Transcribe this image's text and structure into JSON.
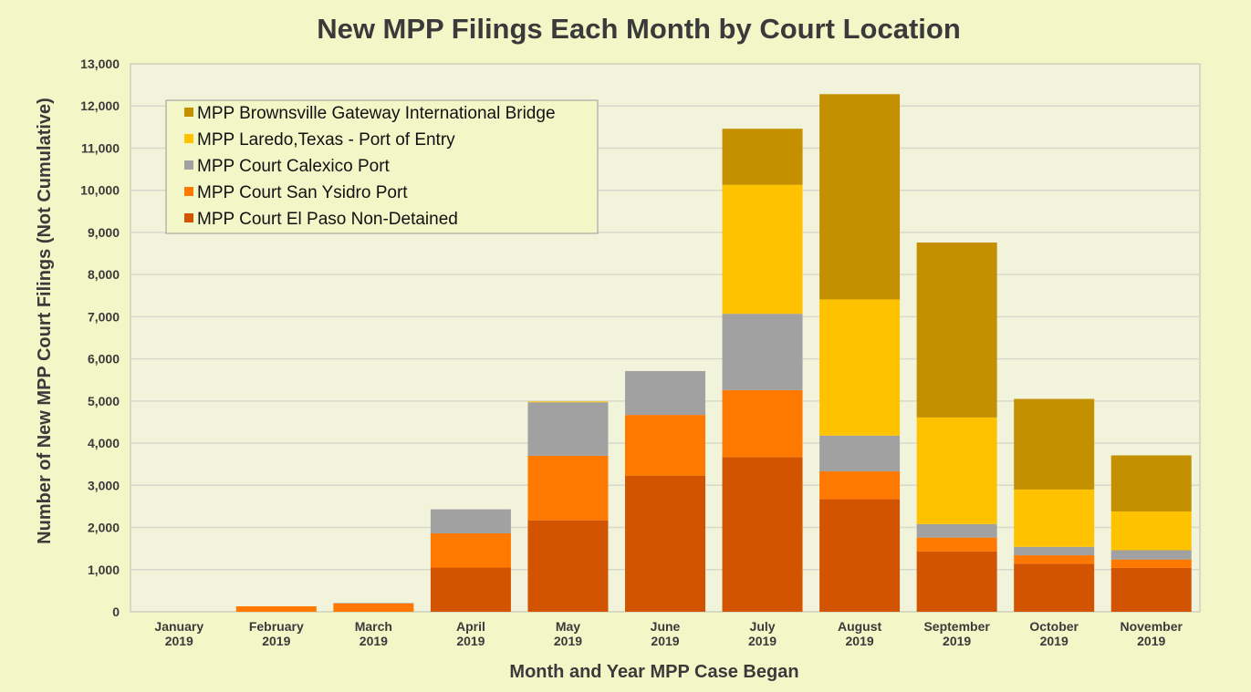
{
  "chart_data": {
    "type": "bar",
    "stacked": true,
    "title": "New MPP Filings Each Month by Court Location",
    "xlabel": "Month and Year MPP Case Began",
    "ylabel": "Number of New MPP Court Filings (Not Cumulative)",
    "ylim": [
      0,
      13000
    ],
    "yticks": [
      "0",
      "1,000",
      "2,000",
      "3,000",
      "4,000",
      "5,000",
      "6,000",
      "7,000",
      "8,000",
      "9,000",
      "10,000",
      "11,000",
      "12,000",
      "13,000"
    ],
    "grid": true,
    "legend_position": "top-left",
    "categories": [
      [
        "January",
        "2019"
      ],
      [
        "February",
        "2019"
      ],
      [
        "March",
        "2019"
      ],
      [
        "April",
        "2019"
      ],
      [
        "May",
        "2019"
      ],
      [
        "June",
        "2019"
      ],
      [
        "July",
        "2019"
      ],
      [
        "August",
        "2019"
      ],
      [
        "September",
        "2019"
      ],
      [
        "October",
        "2019"
      ],
      [
        "November",
        "2019"
      ]
    ],
    "series": [
      {
        "name": "MPP Court El Paso Non-Detained",
        "color": "#d35400",
        "values": [
          0,
          0,
          0,
          1050,
          2170,
          3230,
          3670,
          2670,
          1430,
          1140,
          1040
        ]
      },
      {
        "name": "MPP Court San Ysidro Port",
        "color": "#ff7800",
        "values": [
          0,
          130,
          200,
          810,
          1530,
          1440,
          1590,
          660,
          330,
          200,
          200
        ]
      },
      {
        "name": "MPP Court Calexico Port",
        "color": "#a1a1a1",
        "values": [
          0,
          0,
          10,
          570,
          1270,
          1040,
          1810,
          850,
          320,
          200,
          220
        ]
      },
      {
        "name": "MPP Laredo,Texas - Port of Entry",
        "color": "#ffc200",
        "values": [
          0,
          0,
          0,
          0,
          20,
          0,
          3060,
          3230,
          2530,
          1360,
          920
        ]
      },
      {
        "name": "MPP Brownsville Gateway International Bridge",
        "color": "#c49000",
        "values": [
          0,
          0,
          0,
          0,
          0,
          0,
          1330,
          4870,
          4150,
          2150,
          1330
        ]
      }
    ],
    "legend_order": [
      4,
      3,
      2,
      1,
      0
    ]
  },
  "colors": {
    "background": "#f3f7c8",
    "plot_area": "#f1f3db",
    "gridline": "#d8d8cc",
    "text": "#3a3a3a"
  }
}
